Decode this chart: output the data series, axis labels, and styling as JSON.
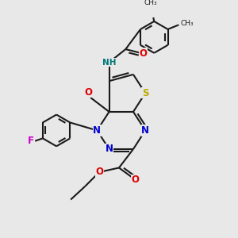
{
  "bg_color": "#e8e8e8",
  "bond_color": "#1a1a1a",
  "bond_width": 1.5,
  "atom_colors": {
    "N": "#0000cc",
    "O": "#dd0000",
    "S": "#bbaa00",
    "F": "#cc00cc",
    "NH": "#007777",
    "C": "#1a1a1a"
  },
  "fig_width": 3.0,
  "fig_height": 3.0,
  "dpi": 100
}
